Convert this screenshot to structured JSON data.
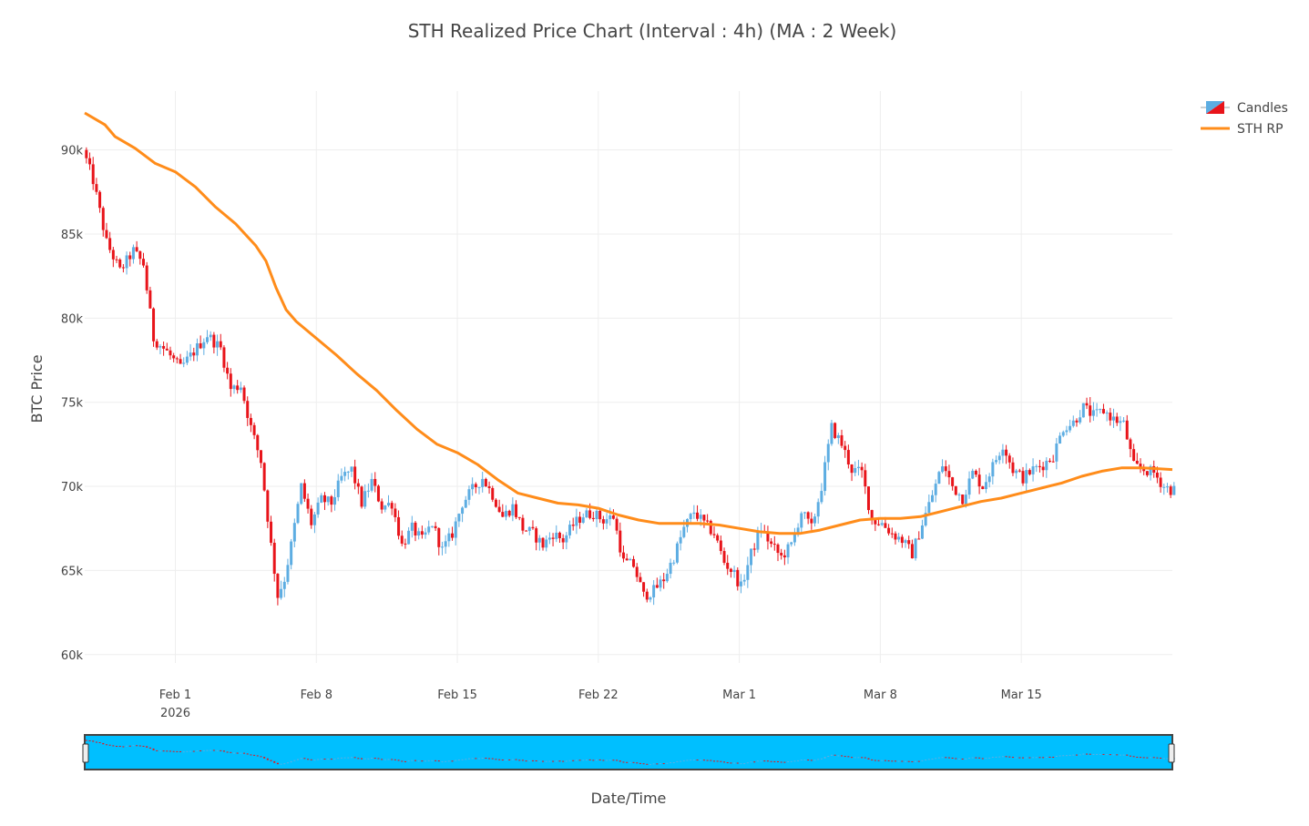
{
  "chart_data": {
    "type": "candlestick",
    "title": "STH Realized Price Chart (Interval : 4h) (MA : 2 Week)",
    "xlabel": "Date/Time",
    "ylabel": "BTC Price",
    "ylim": [
      59500,
      93500
    ],
    "xlim": [
      "2026-01-27 12:00",
      "2026-03-22 12:00"
    ],
    "y_ticks": [
      {
        "value": 60000,
        "label": "60k"
      },
      {
        "value": 65000,
        "label": "65k"
      },
      {
        "value": 70000,
        "label": "70k"
      },
      {
        "value": 75000,
        "label": "75k"
      },
      {
        "value": 80000,
        "label": "80k"
      },
      {
        "value": 85000,
        "label": "85k"
      },
      {
        "value": 90000,
        "label": "90k"
      }
    ],
    "x_ticks": [
      {
        "date": "2026-02-01",
        "label": "Feb 1",
        "sublabel": "2026"
      },
      {
        "date": "2026-02-08",
        "label": "Feb 8",
        "sublabel": ""
      },
      {
        "date": "2026-02-15",
        "label": "Feb 15",
        "sublabel": ""
      },
      {
        "date": "2026-02-22",
        "label": "Feb 22",
        "sublabel": ""
      },
      {
        "date": "2026-03-01",
        "label": "Mar 1",
        "sublabel": ""
      },
      {
        "date": "2026-03-08",
        "label": "Mar 8",
        "sublabel": ""
      },
      {
        "date": "2026-03-15",
        "label": "Mar 15",
        "sublabel": ""
      }
    ],
    "grid": true,
    "legend_position": "top-right",
    "legend": [
      {
        "name": "Candles",
        "kind": "candle"
      },
      {
        "name": "STH RP",
        "kind": "line"
      }
    ],
    "colors": {
      "increasing": "#5dade2",
      "decreasing": "#e8141a",
      "sth_rp": "#ff8c1a",
      "rangeslider_bg": "#00bfff",
      "grid": "#eeeeee"
    },
    "price_path": [
      [
        "2026-01-27 12:00",
        90000
      ],
      [
        "2026-01-28 00:00",
        88200
      ],
      [
        "2026-01-28 16:00",
        84500
      ],
      [
        "2026-01-29 08:00",
        82800
      ],
      [
        "2026-01-30 00:00",
        84000
      ],
      [
        "2026-01-30 12:00",
        83200
      ],
      [
        "2026-01-31 00:00",
        78800
      ],
      [
        "2026-01-31 16:00",
        78000
      ],
      [
        "2026-02-01 08:00",
        77000
      ],
      [
        "2026-02-02 00:00",
        78000
      ],
      [
        "2026-02-02 16:00",
        79000
      ],
      [
        "2026-02-03 08:00",
        78200
      ],
      [
        "2026-02-03 20:00",
        75800
      ],
      [
        "2026-02-04 08:00",
        76000
      ],
      [
        "2026-02-04 20:00",
        73500
      ],
      [
        "2026-02-05 08:00",
        71500
      ],
      [
        "2026-02-05 20:00",
        66500
      ],
      [
        "2026-02-06 04:00",
        63500
      ],
      [
        "2026-02-06 12:00",
        64500
      ],
      [
        "2026-02-06 20:00",
        66500
      ],
      [
        "2026-02-07 08:00",
        70000
      ],
      [
        "2026-02-07 20:00",
        67800
      ],
      [
        "2026-02-08 08:00",
        69200
      ],
      [
        "2026-02-08 20:00",
        69000
      ],
      [
        "2026-02-09 08:00",
        70500
      ],
      [
        "2026-02-09 20:00",
        71000
      ],
      [
        "2026-02-10 08:00",
        69000
      ],
      [
        "2026-02-10 20:00",
        70300
      ],
      [
        "2026-02-11 08:00",
        68800
      ],
      [
        "2026-02-11 20:00",
        69000
      ],
      [
        "2026-02-12 08:00",
        66500
      ],
      [
        "2026-02-12 20:00",
        67500
      ],
      [
        "2026-02-13 08:00",
        66800
      ],
      [
        "2026-02-13 20:00",
        67800
      ],
      [
        "2026-02-14 08:00",
        66200
      ],
      [
        "2026-02-14 20:00",
        67200
      ],
      [
        "2026-02-15 08:00",
        69000
      ],
      [
        "2026-02-15 20:00",
        69800
      ],
      [
        "2026-02-16 08:00",
        70500
      ],
      [
        "2026-02-16 20:00",
        69500
      ],
      [
        "2026-02-17 08:00",
        68200
      ],
      [
        "2026-02-17 20:00",
        68800
      ],
      [
        "2026-02-18 08:00",
        67500
      ],
      [
        "2026-02-18 20:00",
        67200
      ],
      [
        "2026-02-19 08:00",
        66500
      ],
      [
        "2026-02-19 20:00",
        67200
      ],
      [
        "2026-02-20 08:00",
        66800
      ],
      [
        "2026-02-20 20:00",
        67700
      ],
      [
        "2026-02-21 08:00",
        68300
      ],
      [
        "2026-02-21 20:00",
        68400
      ],
      [
        "2026-02-22 08:00",
        68000
      ],
      [
        "2026-02-22 20:00",
        68200
      ],
      [
        "2026-02-23 08:00",
        65500
      ],
      [
        "2026-02-23 20:00",
        65300
      ],
      [
        "2026-02-24 08:00",
        63500
      ],
      [
        "2026-02-24 20:00",
        63800
      ],
      [
        "2026-02-25 08:00",
        64500
      ],
      [
        "2026-02-25 20:00",
        65800
      ],
      [
        "2026-02-26 08:00",
        67500
      ],
      [
        "2026-02-26 20:00",
        68500
      ],
      [
        "2026-02-27 08:00",
        67800
      ],
      [
        "2026-02-27 20:00",
        67200
      ],
      [
        "2026-02-28 08:00",
        65500
      ],
      [
        "2026-02-28 20:00",
        64800
      ],
      [
        "2026-03-01 04:00",
        64000
      ],
      [
        "2026-03-01 16:00",
        66000
      ],
      [
        "2026-03-02 04:00",
        67500
      ],
      [
        "2026-03-02 16:00",
        66500
      ],
      [
        "2026-03-03 04:00",
        65800
      ],
      [
        "2026-03-03 16:00",
        66500
      ],
      [
        "2026-03-04 04:00",
        68500
      ],
      [
        "2026-03-04 16:00",
        67500
      ],
      [
        "2026-03-05 04:00",
        70000
      ],
      [
        "2026-03-05 16:00",
        73500
      ],
      [
        "2026-03-06 04:00",
        72500
      ],
      [
        "2026-03-06 16:00",
        71000
      ],
      [
        "2026-03-07 04:00",
        70800
      ],
      [
        "2026-03-07 16:00",
        68000
      ],
      [
        "2026-03-08 04:00",
        67800
      ],
      [
        "2026-03-08 16:00",
        67200
      ],
      [
        "2026-03-09 04:00",
        66800
      ],
      [
        "2026-03-09 16:00",
        66000
      ],
      [
        "2026-03-10 04:00",
        67800
      ],
      [
        "2026-03-10 16:00",
        69500
      ],
      [
        "2026-03-11 04:00",
        71300
      ],
      [
        "2026-03-11 16:00",
        70000
      ],
      [
        "2026-03-12 04:00",
        69300
      ],
      [
        "2026-03-12 16:00",
        70800
      ],
      [
        "2026-03-13 04:00",
        70000
      ],
      [
        "2026-03-13 16:00",
        71200
      ],
      [
        "2026-03-14 04:00",
        72500
      ],
      [
        "2026-03-14 16:00",
        71000
      ],
      [
        "2026-03-15 04:00",
        70500
      ],
      [
        "2026-03-15 16:00",
        71000
      ],
      [
        "2026-03-16 04:00",
        71300
      ],
      [
        "2026-03-16 16:00",
        71800
      ],
      [
        "2026-03-17 04:00",
        73500
      ],
      [
        "2026-03-17 16:00",
        73800
      ],
      [
        "2026-03-18 04:00",
        74700
      ],
      [
        "2026-03-18 16:00",
        74200
      ],
      [
        "2026-03-19 04:00",
        74500
      ],
      [
        "2026-03-19 16:00",
        74000
      ],
      [
        "2026-03-20 04:00",
        73700
      ],
      [
        "2026-03-20 16:00",
        71200
      ],
      [
        "2026-03-21 04:00",
        71000
      ],
      [
        "2026-03-21 16:00",
        70800
      ],
      [
        "2026-03-22 04:00",
        70000
      ],
      [
        "2026-03-22 12:00",
        69800
      ]
    ],
    "sth_rp": [
      [
        "2026-01-27 12:00",
        92200
      ],
      [
        "2026-01-28 12:00",
        91500
      ],
      [
        "2026-01-29 00:00",
        90800
      ],
      [
        "2026-01-30 00:00",
        90100
      ],
      [
        "2026-01-31 00:00",
        89200
      ],
      [
        "2026-02-01 00:00",
        88700
      ],
      [
        "2026-02-02 00:00",
        87800
      ],
      [
        "2026-02-03 00:00",
        86600
      ],
      [
        "2026-02-04 00:00",
        85600
      ],
      [
        "2026-02-05 00:00",
        84300
      ],
      [
        "2026-02-05 12:00",
        83400
      ],
      [
        "2026-02-06 00:00",
        81800
      ],
      [
        "2026-02-06 12:00",
        80500
      ],
      [
        "2026-02-07 00:00",
        79800
      ],
      [
        "2026-02-08 00:00",
        78800
      ],
      [
        "2026-02-09 00:00",
        77800
      ],
      [
        "2026-02-10 00:00",
        76700
      ],
      [
        "2026-02-11 00:00",
        75700
      ],
      [
        "2026-02-12 00:00",
        74500
      ],
      [
        "2026-02-13 00:00",
        73400
      ],
      [
        "2026-02-14 00:00",
        72500
      ],
      [
        "2026-02-15 00:00",
        72000
      ],
      [
        "2026-02-16 00:00",
        71300
      ],
      [
        "2026-02-17 00:00",
        70400
      ],
      [
        "2026-02-18 00:00",
        69600
      ],
      [
        "2026-02-19 00:00",
        69300
      ],
      [
        "2026-02-20 00:00",
        69000
      ],
      [
        "2026-02-21 00:00",
        68900
      ],
      [
        "2026-02-22 00:00",
        68700
      ],
      [
        "2026-02-23 00:00",
        68300
      ],
      [
        "2026-02-24 00:00",
        68000
      ],
      [
        "2026-02-25 00:00",
        67800
      ],
      [
        "2026-02-26 00:00",
        67800
      ],
      [
        "2026-02-27 00:00",
        67800
      ],
      [
        "2026-02-28 00:00",
        67700
      ],
      [
        "2026-03-01 00:00",
        67500
      ],
      [
        "2026-03-02 00:00",
        67300
      ],
      [
        "2026-03-03 00:00",
        67200
      ],
      [
        "2026-03-04 00:00",
        67200
      ],
      [
        "2026-03-05 00:00",
        67400
      ],
      [
        "2026-03-06 00:00",
        67700
      ],
      [
        "2026-03-07 00:00",
        68000
      ],
      [
        "2026-03-08 00:00",
        68100
      ],
      [
        "2026-03-09 00:00",
        68100
      ],
      [
        "2026-03-10 00:00",
        68200
      ],
      [
        "2026-03-11 00:00",
        68500
      ],
      [
        "2026-03-12 00:00",
        68800
      ],
      [
        "2026-03-13 00:00",
        69100
      ],
      [
        "2026-03-14 00:00",
        69300
      ],
      [
        "2026-03-15 00:00",
        69600
      ],
      [
        "2026-03-16 00:00",
        69900
      ],
      [
        "2026-03-17 00:00",
        70200
      ],
      [
        "2026-03-18 00:00",
        70600
      ],
      [
        "2026-03-19 00:00",
        70900
      ],
      [
        "2026-03-20 00:00",
        71100
      ],
      [
        "2026-03-21 00:00",
        71100
      ],
      [
        "2026-03-22 12:00",
        71000
      ]
    ]
  }
}
